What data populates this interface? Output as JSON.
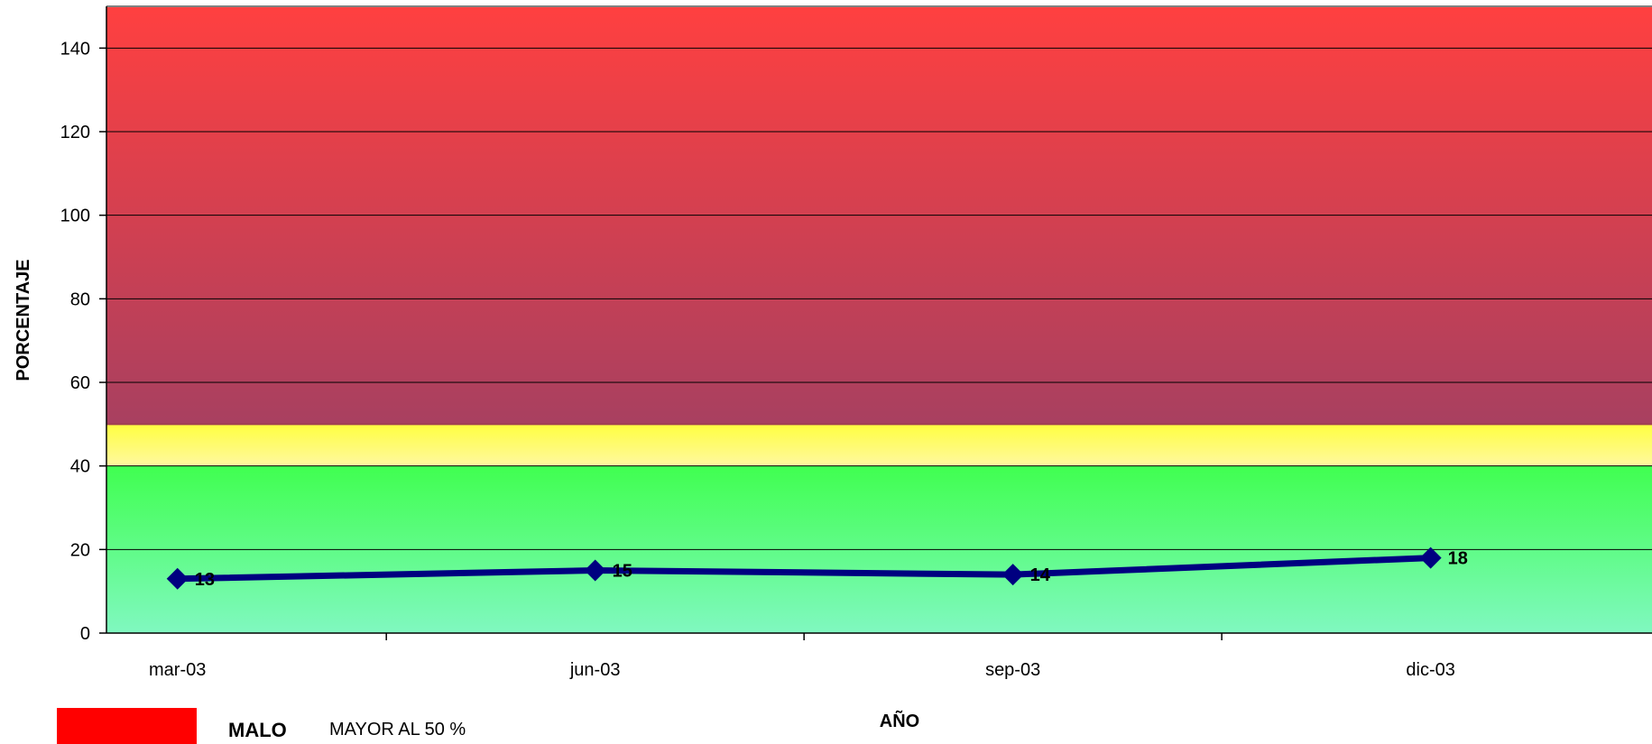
{
  "chart_data": {
    "type": "line",
    "title": "",
    "xlabel": "AÑO",
    "ylabel": "PORCENTAJE",
    "categories": [
      "mar-03",
      "jun-03",
      "sep-03",
      "dic-03"
    ],
    "series": [
      {
        "values": [
          13,
          15,
          14,
          18
        ],
        "color": "#000080"
      }
    ],
    "ylim": [
      0,
      150
    ],
    "yticks": [
      0,
      20,
      40,
      60,
      80,
      100,
      120,
      140
    ],
    "grid": true,
    "bands": [
      {
        "from": 0,
        "to": 40,
        "colors": [
          "#80f8c0",
          "#40ff50"
        ]
      },
      {
        "from": 40,
        "to": 50,
        "colors": [
          "#fff8a0",
          "#ffff40"
        ]
      },
      {
        "from": 50,
        "to": 150,
        "colors": [
          "#a84060",
          "#ff4040"
        ]
      }
    ]
  },
  "legend": {
    "swatch_color": "#ff0000",
    "label": "MALO",
    "description": "MAYOR AL 50 %"
  }
}
